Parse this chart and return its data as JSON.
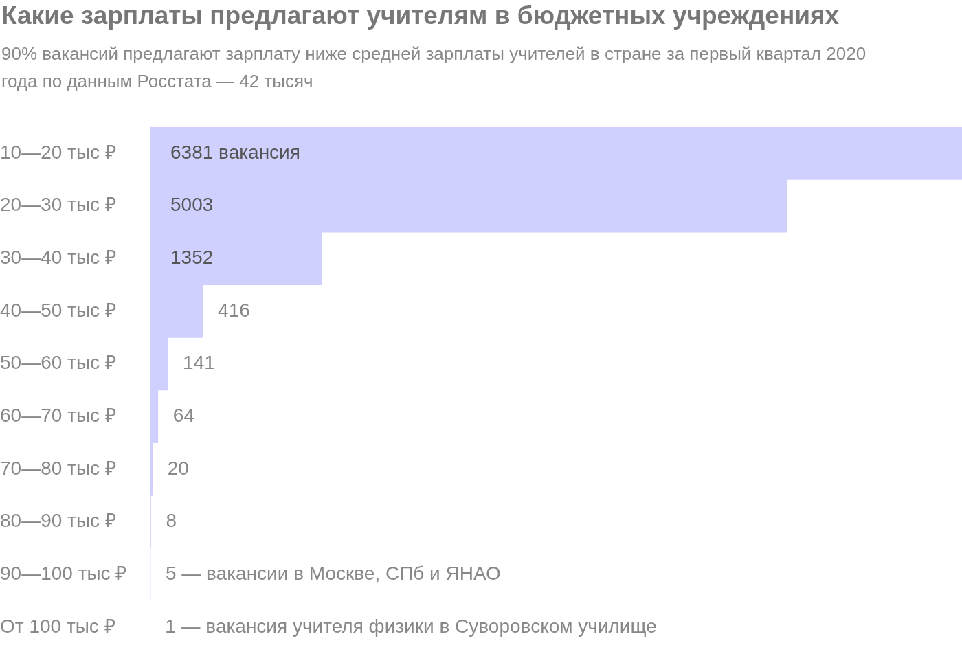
{
  "chart_data": {
    "type": "bar",
    "orientation": "horizontal",
    "title": "Какие зарплаты предлагают учителям в бюджетных учреждениях",
    "subtitle": "90% вакансий предлагают зарплату ниже средней зарплаты учителей в стране за первый квартал 2020 года по данным Росстата — 42 тысяч",
    "categories": [
      "10—20 тыс ₽",
      "20—30 тыс ₽",
      "30—40 тыс ₽",
      "40—50 тыс ₽",
      "50—60 тыс ₽",
      "60—70 тыс ₽",
      "70—80 тыс ₽",
      "80—90 тыс ₽",
      "90—100 тыс ₽",
      "От 100 тыс ₽"
    ],
    "values": [
      6381,
      5003,
      1352,
      416,
      141,
      64,
      20,
      8,
      5,
      1
    ],
    "value_labels": [
      "6381 вакансия",
      "5003",
      "1352",
      "416",
      "141",
      "64",
      "20",
      "8",
      "5 — вакансии в Москве, СПб и ЯНАО",
      "1 — вакансия учителя физики в Суворовском училище"
    ],
    "color": "#d0d0ff",
    "tick_labels": "y",
    "legend": false
  }
}
